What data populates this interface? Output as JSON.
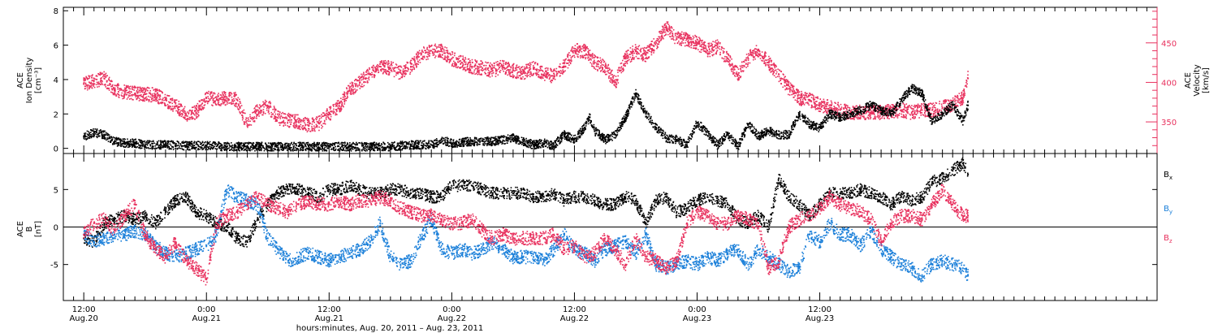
{
  "chart_data": [
    {
      "type": "scatter",
      "panel": "top",
      "ylabel_left": [
        "ACE",
        "Ion Density",
        "[cm⁻³]"
      ],
      "ylabel_right": [
        "ACE",
        "Velocity",
        "[km/s]"
      ],
      "ylim_left": [
        -0.3,
        8.2
      ],
      "yticks_left": [
        0,
        2,
        4,
        6,
        8
      ],
      "ylim_right": [
        310,
        495
      ],
      "yticks_right": [
        350,
        400,
        450
      ],
      "series": [
        {
          "color": "#000000",
          "axis": "left",
          "x": [
            0,
            1,
            2,
            3,
            4,
            5,
            6,
            8,
            10,
            12,
            14,
            16,
            18,
            20,
            22,
            24,
            26,
            28,
            30,
            32,
            34,
            34.5,
            35,
            36,
            38,
            40,
            42,
            44,
            45,
            46,
            47,
            48,
            49,
            49.5,
            50,
            51,
            52,
            53,
            54,
            55,
            56,
            57,
            58,
            59,
            60,
            62,
            62.5,
            63,
            64,
            65,
            66,
            67,
            68,
            69,
            70,
            71,
            72,
            73,
            74,
            75,
            76,
            77,
            78,
            79,
            80,
            81,
            82,
            83,
            84,
            85,
            86,
            86.5
          ],
          "y": [
            0.7,
            0.9,
            0.8,
            0.4,
            0.3,
            0.3,
            0.2,
            0.2,
            0.15,
            0.15,
            0.1,
            0.1,
            0.1,
            0.1,
            0.1,
            0.1,
            0.1,
            0.1,
            0.1,
            0.2,
            0.2,
            0.3,
            0.5,
            0.3,
            0.4,
            0.4,
            0.6,
            0.2,
            0.3,
            0.15,
            0.8,
            0.5,
            1.2,
            1.8,
            1.0,
            0.5,
            0.8,
            1.8,
            3.2,
            2.0,
            1.2,
            0.6,
            0.5,
            0.2,
            1.5,
            0.2,
            0.5,
            0.8,
            0.1,
            1.4,
            0.7,
            1.0,
            0.8,
            0.8,
            2.0,
            1.4,
            1.2,
            2.0,
            1.8,
            2.0,
            2.2,
            2.5,
            2.2,
            2.0,
            2.8,
            3.5,
            3.2,
            1.5,
            2.0,
            2.5,
            1.6,
            2.5
          ]
        },
        {
          "color": "#e8315e",
          "axis": "right",
          "x": [
            0,
            1,
            2,
            3,
            4,
            5,
            6,
            7,
            8,
            9,
            10,
            11,
            12,
            13,
            14,
            15,
            16,
            17,
            18,
            19,
            20,
            21,
            22,
            23,
            24,
            25,
            26,
            27,
            28,
            29,
            30,
            31,
            32,
            33,
            34,
            35,
            36,
            37,
            38,
            39,
            40,
            41,
            42,
            43,
            44,
            45,
            46,
            47,
            48,
            49,
            50,
            51,
            52,
            53,
            54,
            55,
            56,
            57,
            58,
            59,
            60,
            61,
            62,
            63,
            64,
            65,
            66,
            67,
            68,
            69,
            70,
            71,
            72,
            73,
            74,
            75,
            76,
            77,
            78,
            79,
            80,
            81,
            82,
            83,
            84,
            85,
            86,
            86.5
          ],
          "y": [
            398,
            402,
            405,
            390,
            388,
            386,
            385,
            384,
            378,
            370,
            360,
            362,
            380,
            378,
            380,
            378,
            345,
            365,
            370,
            355,
            352,
            350,
            345,
            348,
            360,
            370,
            390,
            400,
            410,
            420,
            418,
            412,
            420,
            435,
            440,
            440,
            430,
            425,
            420,
            418,
            415,
            420,
            415,
            412,
            418,
            410,
            408,
            420,
            440,
            440,
            425,
            420,
            400,
            430,
            440,
            435,
            450,
            470,
            455,
            455,
            450,
            440,
            445,
            430,
            410,
            430,
            440,
            425,
            410,
            392,
            380,
            378,
            372,
            368,
            365,
            362,
            362,
            362,
            362,
            363,
            365,
            362,
            365,
            365,
            368,
            372,
            380,
            405
          ]
        }
      ]
    },
    {
      "type": "scatter",
      "panel": "bottom",
      "ylabel_left": [
        "ACE",
        "B",
        "[nT]"
      ],
      "ylim": [
        -9.8,
        9.8
      ],
      "yticks": [
        -5,
        0,
        5
      ],
      "zero_line": true,
      "legend_placement": "right",
      "series": [
        {
          "name": "Bx",
          "color": "#000000",
          "x": [
            0,
            1,
            2,
            3,
            4,
            5,
            6,
            7,
            8,
            9,
            10,
            11,
            12,
            13,
            14,
            15,
            16,
            17,
            18,
            19,
            20,
            21,
            22,
            23,
            24,
            25,
            26,
            27,
            28,
            29,
            30,
            31,
            32,
            33,
            34,
            35,
            36,
            37,
            38,
            39,
            40,
            41,
            42,
            43,
            44,
            45,
            46,
            47,
            48,
            49,
            50,
            51,
            52,
            53,
            54,
            55,
            56,
            57,
            58,
            59,
            60,
            61,
            62,
            63,
            64,
            65,
            66,
            67,
            68,
            69,
            70,
            71,
            72,
            73,
            74,
            75,
            76,
            77,
            78,
            79,
            80,
            81,
            82,
            83,
            84,
            85,
            86,
            86.5
          ],
          "y": [
            -1.5,
            -2.0,
            0.5,
            1.0,
            1.5,
            1.0,
            1.5,
            0.5,
            2.0,
            3.5,
            4.0,
            2.0,
            1.5,
            0.5,
            0.0,
            -1.5,
            -2.0,
            1.0,
            3.0,
            4.5,
            5.0,
            5.0,
            4.5,
            4.0,
            5.0,
            5.0,
            5.5,
            5.0,
            4.5,
            4.5,
            5.0,
            5.0,
            4.5,
            4.5,
            4.0,
            4.0,
            5.5,
            5.5,
            5.5,
            5.0,
            4.5,
            4.5,
            4.5,
            4.5,
            4.0,
            4.0,
            4.5,
            3.5,
            4.0,
            4.0,
            3.5,
            3.0,
            3.0,
            4.0,
            3.5,
            0.5,
            3.5,
            4.0,
            2.0,
            2.5,
            3.5,
            4.0,
            3.5,
            3.0,
            1.0,
            0.5,
            1.5,
            0.0,
            6.5,
            4.0,
            3.0,
            1.5,
            3.0,
            4.5,
            4.5,
            4.5,
            5.0,
            4.5,
            4.0,
            3.0,
            4.0,
            3.5,
            4.0,
            6.0,
            6.5,
            7.5,
            8.5,
            7.0
          ]
        },
        {
          "name": "By",
          "color": "#1a7fd9",
          "x": [
            0,
            1,
            2,
            3,
            4,
            5,
            6,
            7,
            8,
            9,
            10,
            11,
            12,
            13,
            14,
            15,
            16,
            17,
            18,
            19,
            20,
            21,
            22,
            23,
            24,
            25,
            26,
            27,
            28,
            29,
            30,
            31,
            32,
            33,
            34,
            35,
            36,
            37,
            38,
            39,
            40,
            41,
            42,
            43,
            44,
            45,
            46,
            47,
            48,
            49,
            50,
            51,
            52,
            53,
            54,
            55,
            56,
            57,
            58,
            59,
            60,
            61,
            62,
            63,
            64,
            65,
            66,
            67,
            68,
            69,
            70,
            71,
            72,
            73,
            74,
            75,
            76,
            77,
            78,
            79,
            80,
            81,
            82,
            83,
            84,
            85,
            86,
            86.5
          ],
          "y": [
            -1.0,
            -2.0,
            -1.5,
            -1.0,
            -1.0,
            -0.5,
            -1.0,
            -2.5,
            -3.5,
            -4.0,
            -3.5,
            -3.0,
            -2.5,
            -1.0,
            5.0,
            4.0,
            3.5,
            3.0,
            -1.5,
            -3.0,
            -4.5,
            -4.0,
            -3.5,
            -4.0,
            -4.5,
            -4.0,
            -3.5,
            -3.0,
            -2.0,
            0.5,
            -4.0,
            -5.0,
            -4.5,
            -1.5,
            1.0,
            -3.0,
            -3.5,
            -3.0,
            -3.5,
            -3.0,
            -2.0,
            -3.0,
            -4.0,
            -4.0,
            -4.0,
            -4.5,
            -3.0,
            -1.0,
            -3.0,
            -3.5,
            -4.5,
            -3.0,
            -2.5,
            -2.0,
            -3.5,
            -1.0,
            -5.0,
            -5.5,
            -5.0,
            -4.5,
            -5.0,
            -4.0,
            -4.5,
            -3.5,
            -3.0,
            -5.0,
            -3.0,
            -4.0,
            -5.0,
            -6.0,
            -5.5,
            -1.0,
            -2.0,
            0.5,
            -1.0,
            -1.0,
            -2.5,
            -0.5,
            -3.0,
            -4.0,
            -5.0,
            -5.5,
            -6.5,
            -5.0,
            -4.5,
            -5.0,
            -5.5,
            -6.5
          ]
        },
        {
          "name": "Bz",
          "color": "#e8315e",
          "x": [
            0,
            1,
            2,
            3,
            4,
            5,
            6,
            7,
            8,
            9,
            10,
            11,
            12,
            13,
            14,
            15,
            16,
            17,
            18,
            19,
            20,
            21,
            22,
            23,
            24,
            25,
            26,
            27,
            28,
            29,
            30,
            31,
            32,
            33,
            34,
            35,
            36,
            37,
            38,
            39,
            40,
            41,
            42,
            43,
            44,
            45,
            46,
            47,
            48,
            49,
            50,
            51,
            52,
            53,
            54,
            55,
            56,
            57,
            58,
            59,
            60,
            61,
            62,
            63,
            64,
            65,
            66,
            67,
            68,
            69,
            70,
            71,
            72,
            73,
            74,
            75,
            76,
            77,
            78,
            79,
            80,
            81,
            82,
            83,
            84,
            85,
            86,
            86.5
          ],
          "y": [
            -1.0,
            0.5,
            1.0,
            -0.5,
            1.5,
            3.0,
            -1.0,
            -3.0,
            -4.0,
            -2.0,
            -4.5,
            -5.5,
            -7.0,
            0.5,
            1.5,
            2.0,
            3.0,
            4.0,
            3.0,
            2.5,
            2.0,
            3.0,
            3.5,
            3.0,
            3.0,
            3.5,
            3.0,
            3.5,
            3.5,
            4.0,
            3.5,
            2.5,
            2.0,
            1.5,
            1.5,
            1.0,
            0.5,
            0.5,
            1.0,
            -0.5,
            -1.5,
            -1.0,
            -1.5,
            -1.5,
            -1.5,
            -1.5,
            -1.0,
            -3.0,
            -2.5,
            -4.0,
            -3.5,
            -1.5,
            -3.0,
            -5.0,
            -1.5,
            -4.0,
            -4.5,
            -5.5,
            -4.5,
            0.5,
            2.0,
            1.5,
            0.5,
            0.5,
            1.5,
            1.0,
            0.5,
            -5.5,
            -4.5,
            0.0,
            1.0,
            1.5,
            2.5,
            4.0,
            3.0,
            2.5,
            2.0,
            1.0,
            -2.0,
            0.5,
            1.5,
            1.5,
            1.0,
            3.0,
            5.0,
            3.0,
            1.5,
            1.5
          ]
        }
      ],
      "legend": [
        {
          "label": "B",
          "sub": "x",
          "color": "#000000"
        },
        {
          "label": "B",
          "sub": "y",
          "color": "#1a7fd9"
        },
        {
          "label": "B",
          "sub": "z",
          "color": "#e8315e"
        }
      ]
    }
  ],
  "x_axis": {
    "xlim": [
      -2,
      105
    ],
    "major_ticks": [
      {
        "x": 0,
        "line1": "12:00",
        "line2": "Aug.20"
      },
      {
        "x": 12,
        "line1": "0:00",
        "line2": "Aug.21"
      },
      {
        "x": 24,
        "line1": "12:00",
        "line2": "Aug.21"
      },
      {
        "x": 36,
        "line1": "0:00",
        "line2": "Aug.22"
      },
      {
        "x": 48,
        "line1": "12:00",
        "line2": "Aug.22"
      },
      {
        "x": 60,
        "line1": "0:00",
        "line2": "Aug.23"
      },
      {
        "x": 72,
        "line1": "12:00",
        "line2": "Aug.23"
      }
    ],
    "xlabel": "hours:minutes, Aug. 20, 2011 – Aug. 23, 2011"
  }
}
